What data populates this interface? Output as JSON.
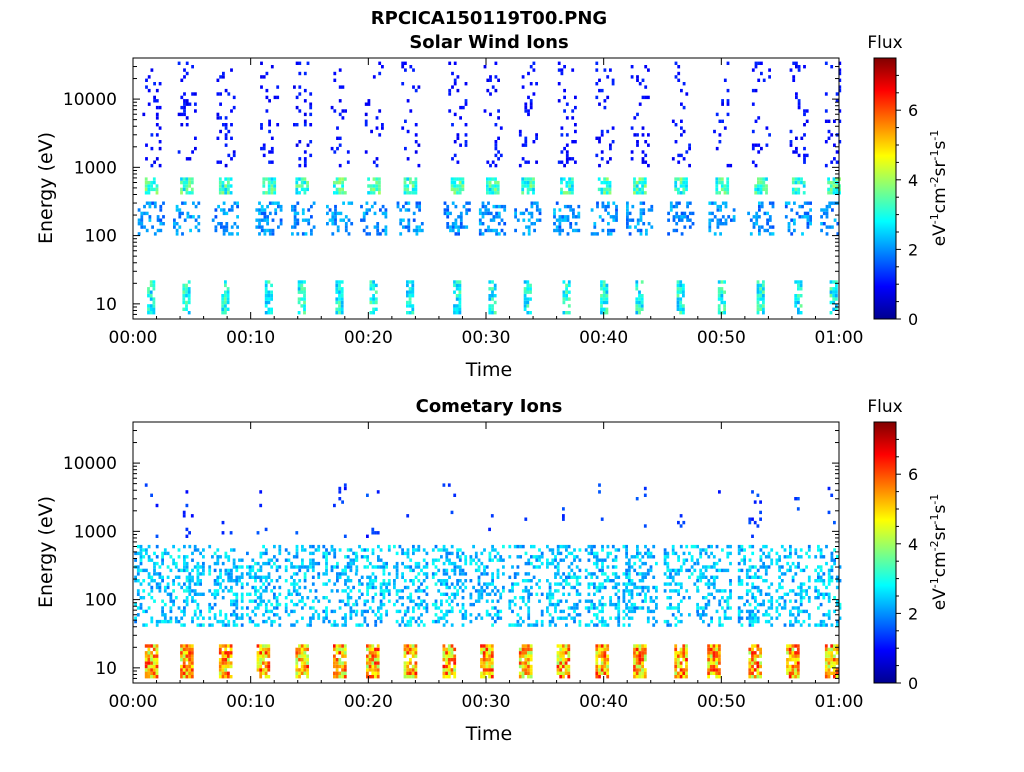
{
  "figure_title": "RPCICA150119T00.PNG",
  "colorbar_gradient": [
    "#00008f",
    "#0000ff",
    "#0080ff",
    "#00ffff",
    "#80ff80",
    "#ffff00",
    "#ff8000",
    "#ff0000",
    "#800000"
  ],
  "chart_data": [
    {
      "type": "heatmap",
      "title": "Solar Wind Ions",
      "xlabel": "Time",
      "ylabel": "Energy (eV)",
      "yscale": "log",
      "xlim_minutes": [
        0,
        60
      ],
      "ylim": [
        6,
        40000
      ],
      "x_tick_labels": [
        "00:00",
        "00:10",
        "00:20",
        "00:30",
        "00:40",
        "00:50",
        "01:00"
      ],
      "y_tick_values": [
        10,
        100,
        1000,
        10000
      ],
      "y_tick_labels": [
        "10",
        "100",
        "1000",
        "10000"
      ],
      "colorbar": {
        "title": "Flux",
        "label": "eV-1cm-2sr-1s-1",
        "range": [
          0,
          7.5
        ],
        "ticks": [
          "0",
          "2",
          "4",
          "6"
        ]
      },
      "grid": false,
      "event_minutes": [
        1.5,
        4.5,
        7.8,
        11.5,
        14.3,
        17.5,
        20.4,
        23.5,
        27.5,
        30.5,
        33.5,
        36.8,
        40.0,
        43.0,
        46.5,
        50.0,
        53.3,
        56.5,
        59.5
      ],
      "features": [
        {
          "emin": 400,
          "emax": 700,
          "flux": 3.2,
          "width_min": 1.0,
          "density": 0.8
        },
        {
          "emin": 100,
          "emax": 300,
          "flux": 2.0,
          "width_min": 2.2,
          "density": 0.35
        },
        {
          "emin": 1000,
          "emax": 35000,
          "flux": 1.0,
          "width_min": 1.4,
          "density": 0.12
        },
        {
          "emin": 7,
          "emax": 22,
          "flux": 2.9,
          "width_min": 0.6,
          "density": 0.75
        }
      ]
    },
    {
      "type": "heatmap",
      "title": "Cometary Ions",
      "xlabel": "Time",
      "ylabel": "Energy (eV)",
      "yscale": "log",
      "xlim_minutes": [
        0,
        60
      ],
      "ylim": [
        6,
        40000
      ],
      "x_tick_labels": [
        "00:00",
        "00:10",
        "00:20",
        "00:30",
        "00:40",
        "00:50",
        "01:00"
      ],
      "y_tick_values": [
        10,
        100,
        1000,
        10000
      ],
      "y_tick_labels": [
        "10",
        "100",
        "1000",
        "10000"
      ],
      "colorbar": {
        "title": "Flux",
        "label": "eV-1cm-2sr-1s-1",
        "range": [
          0,
          7.5
        ],
        "ticks": [
          "0",
          "2",
          "4",
          "6"
        ]
      },
      "grid": false,
      "event_minutes": [
        1.5,
        4.5,
        7.8,
        11.0,
        14.3,
        17.5,
        20.3,
        23.5,
        26.8,
        30.0,
        33.3,
        36.5,
        39.8,
        43.0,
        46.5,
        49.3,
        52.8,
        56.0,
        59.3
      ],
      "features": [
        {
          "emin": 7,
          "emax": 20,
          "flux": 5.2,
          "width_min": 1.0,
          "density": 0.9
        },
        {
          "emin": 40,
          "emax": 600,
          "flux": 2.4,
          "width_min": 2.8,
          "density": 0.35
        },
        {
          "emin": 800,
          "emax": 5000,
          "flux": 1.3,
          "width_min": 1.0,
          "density": 0.05
        }
      ]
    }
  ]
}
